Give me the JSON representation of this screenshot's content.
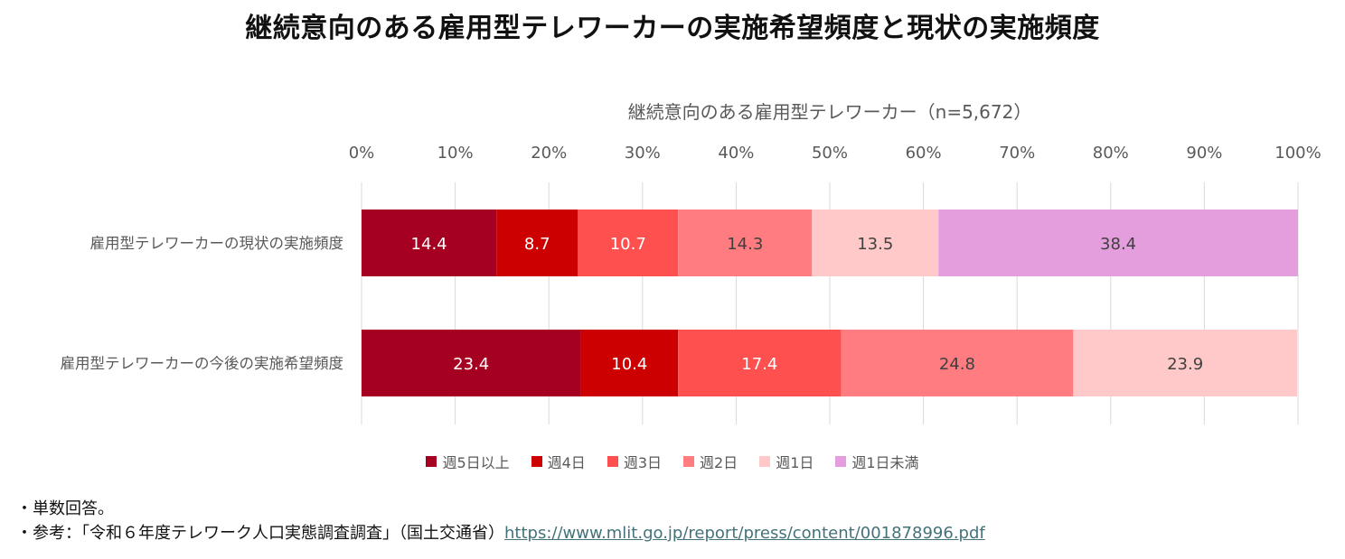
{
  "title": "継続意向のある雇用型テレワーカーの実施希望頻度と現状の実施頻度",
  "chart_data": {
    "type": "bar",
    "orientation": "horizontal",
    "stacked": true,
    "title": "継続意向のある雇用型テレワーカー（n=5,672）",
    "categories": [
      "雇用型テレワーカーの現状の実施頻度",
      "雇用型テレワーカーの今後の実施希望頻度"
    ],
    "x_ticks": [
      "0%",
      "10%",
      "20%",
      "30%",
      "40%",
      "50%",
      "60%",
      "70%",
      "80%",
      "90%",
      "100%"
    ],
    "xlim": [
      0,
      100
    ],
    "grid": true,
    "legend_position": "bottom",
    "series": [
      {
        "name": "週5日以上",
        "color": "#a50021",
        "values": [
          14.4,
          23.4
        ],
        "labels": [
          "14.4",
          "23.4"
        ],
        "label_color": "#ffffff"
      },
      {
        "name": "週4日",
        "color": "#cc0000",
        "values": [
          8.7,
          10.4
        ],
        "labels": [
          "8.7",
          "10.4"
        ],
        "label_color": "#ffffff"
      },
      {
        "name": "週3日",
        "color": "#ff5050",
        "values": [
          10.7,
          17.4
        ],
        "labels": [
          "10.7",
          "17.4"
        ],
        "label_color": "#ffffff"
      },
      {
        "name": "週2日",
        "color": "#ff7c80",
        "values": [
          14.3,
          24.8
        ],
        "labels": [
          "14.3",
          "24.8"
        ],
        "label_color": "#404040"
      },
      {
        "name": "週1日",
        "color": "#ffc9c9",
        "values": [
          13.5,
          23.9
        ],
        "labels": [
          "13.5",
          "23.9"
        ],
        "label_color": "#404040"
      },
      {
        "name": "週1日未満",
        "color": "#e49edd",
        "values": [
          38.4,
          null
        ],
        "labels": [
          "38.4",
          ""
        ],
        "label_color": "#404040"
      }
    ]
  },
  "notes": {
    "line1": "・単数回答。",
    "line2_prefix": "・参考：「令和６年度テレワーク人口実態調査調査」（国土交通省）",
    "line2_link": "https://www.mlit.go.jp/report/press/content/001878996.pdf"
  }
}
